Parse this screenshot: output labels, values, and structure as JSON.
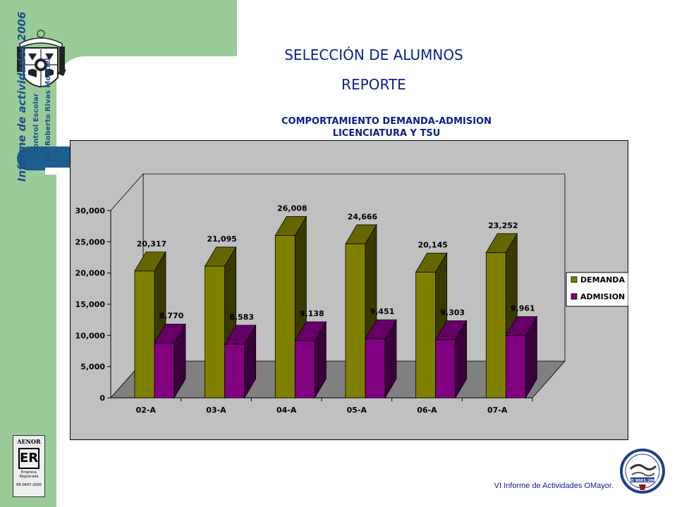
{
  "slide": {
    "title_line1": "SELECCIÓN DE ALUMNOS",
    "title_line2": "REPORTE",
    "side_title": "Informe de actividades 2006",
    "side_subtitle": "Control Escolar",
    "side_author": "Lic. Roberto Rivas Montiel",
    "footer": "VI Informe de Actividades OMayor.",
    "aenor": {
      "brand": "AENOR",
      "mark": "ER",
      "caption_1": "Empresa",
      "caption_2": "Registrada",
      "code": "ER-0847-2000"
    },
    "iso_badge": "ISO 9001:2000"
  },
  "colors": {
    "band_green": "#99CC99",
    "tab_blue": "#1F5E8C",
    "title_blue": "#0A1E8C",
    "demanda": "#808000",
    "admision": "#800080",
    "plot_bg": "#C0C0C0",
    "floor": "#808080"
  },
  "chart_data": {
    "type": "bar",
    "title": "COMPORTAMIENTO DEMANDA-ADMISION",
    "subtitle": "LICENCIATURA Y TSU",
    "categories": [
      "02-A",
      "03-A",
      "04-A",
      "05-A",
      "06-A",
      "07-A"
    ],
    "series": [
      {
        "name": "DEMANDA",
        "values": [
          20317,
          21095,
          26008,
          24666,
          20145,
          23252
        ]
      },
      {
        "name": "ADMISION",
        "values": [
          8770,
          8583,
          9138,
          9451,
          9303,
          9961
        ]
      }
    ],
    "value_labels": {
      "DEMANDA": [
        "20,317",
        "21,095",
        "26,008",
        "24,666",
        "20,145",
        "23,252"
      ],
      "ADMISION": [
        "8,770",
        "8,583",
        "9,138",
        "9,451",
        "9,303",
        "9,961"
      ]
    },
    "y_ticks": [
      0,
      5000,
      10000,
      15000,
      20000,
      25000,
      30000
    ],
    "y_tick_labels": [
      "0",
      "5,000",
      "10,000",
      "15,000",
      "20,000",
      "25,000",
      "30,000"
    ],
    "ylim": [
      0,
      30000
    ],
    "legend_position": "right",
    "grid": false,
    "style": "3d"
  }
}
